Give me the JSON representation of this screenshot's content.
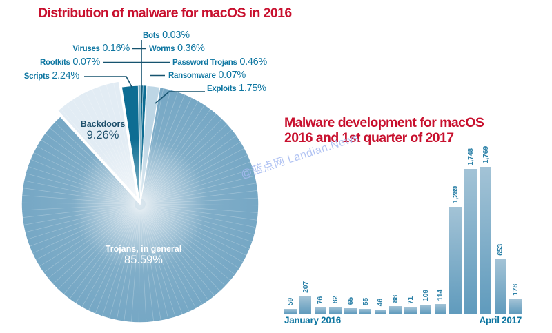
{
  "watermark": "@蓝点网 Landian.News",
  "colors": {
    "title_red": "#c8102e",
    "label_teal": "#0e76a1",
    "leader_line": "#16536f",
    "slice_dark": "#0d6d93",
    "slice_pale": "#bdd6e5",
    "slice_main": "#6fa3c2",
    "slice_backdoors": "#e2ecf4",
    "bar_fill_top": "#a3c3d6",
    "bar_fill_bottom": "#609bbd"
  },
  "pie_chart": {
    "title": "Distribution of malware for macOS in 2016",
    "slices": [
      {
        "id": "bots",
        "label": "Bots",
        "pct": "0.03%",
        "value": 0.03
      },
      {
        "id": "worms",
        "label": "Worms",
        "pct": "0.36%",
        "value": 0.36
      },
      {
        "id": "password-trojans",
        "label": "Password Trojans",
        "pct": "0.46%",
        "value": 0.46
      },
      {
        "id": "ransomware",
        "label": "Ransomware",
        "pct": "0.07%",
        "value": 0.07
      },
      {
        "id": "exploits",
        "label": "Exploits",
        "pct": "1.75%",
        "value": 1.75
      },
      {
        "id": "trojans",
        "label": "Trojans, in general",
        "pct": "85.59%",
        "value": 85.59
      },
      {
        "id": "backdoors",
        "label": "Backdoors",
        "pct": "9.26%",
        "value": 9.26
      },
      {
        "id": "scripts",
        "label": "Scripts",
        "pct": "2.24%",
        "value": 2.24
      },
      {
        "id": "rootkits",
        "label": "Rootkits",
        "pct": "0.07%",
        "value": 0.07
      },
      {
        "id": "viruses",
        "label": "Viruses",
        "pct": "0.16%",
        "value": 0.16
      }
    ]
  },
  "bar_chart": {
    "title_line1": "Malware development for macOS",
    "title_line2": "2016 and 1st quarter of 2017",
    "x_start_label": "January 2016",
    "x_end_label": "April 2017",
    "bars": [
      {
        "label": "59",
        "value": 59
      },
      {
        "label": "207",
        "value": 207
      },
      {
        "label": "76",
        "value": 76
      },
      {
        "label": "82",
        "value": 82
      },
      {
        "label": "65",
        "value": 65
      },
      {
        "label": "55",
        "value": 55
      },
      {
        "label": "46",
        "value": 46
      },
      {
        "label": "88",
        "value": 88
      },
      {
        "label": "71",
        "value": 71
      },
      {
        "label": "109",
        "value": 109
      },
      {
        "label": "114",
        "value": 114
      },
      {
        "label": "1,289",
        "value": 1289
      },
      {
        "label": "1,748",
        "value": 1748
      },
      {
        "label": "1,769",
        "value": 1769
      },
      {
        "label": "653",
        "value": 653
      },
      {
        "label": "178",
        "value": 178
      }
    ]
  },
  "chart_data": [
    {
      "type": "pie",
      "title": "Distribution of malware for macOS in 2016",
      "labels": [
        "Bots",
        "Worms",
        "Password Trojans",
        "Ransomware",
        "Exploits",
        "Trojans, in general",
        "Backdoors",
        "Scripts",
        "Rootkits",
        "Viruses"
      ],
      "values": [
        0.03,
        0.36,
        0.46,
        0.07,
        1.75,
        85.59,
        9.26,
        2.24,
        0.07,
        0.16
      ],
      "unit": "percent",
      "legend_position": "callout-labels",
      "exploded_slice": "Backdoors"
    },
    {
      "type": "bar",
      "title": "Malware development for macOS 2016 and 1st quarter of 2017",
      "x_tick_labels": [
        "January 2016",
        "April 2017"
      ],
      "x_range_note": "16 consecutive months, January 2016 through April 2017",
      "values": [
        59,
        207,
        76,
        82,
        65,
        55,
        46,
        88,
        71,
        109,
        114,
        1289,
        1748,
        1769,
        653,
        178
      ],
      "data_labels": [
        "59",
        "207",
        "76",
        "82",
        "65",
        "55",
        "46",
        "88",
        "71",
        "109",
        "114",
        "1,289",
        "1,748",
        "1,769",
        "653",
        "178"
      ],
      "ylim": [
        0,
        1769
      ],
      "grid": false,
      "legend_position": "none"
    }
  ]
}
